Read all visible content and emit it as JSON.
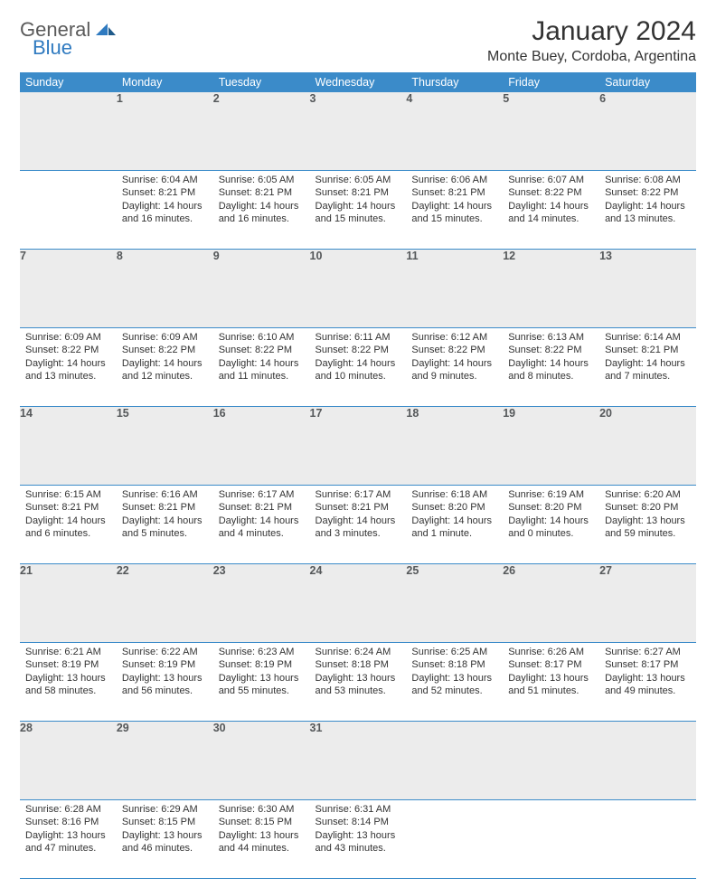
{
  "brand": {
    "name1": "General",
    "name2": "Blue"
  },
  "title": "January 2024",
  "location": "Monte Buey, Cordoba, Argentina",
  "colors": {
    "header_bg": "#3b8bc9",
    "header_text": "#ffffff",
    "daynum_bg": "#ececec",
    "daynum_text": "#55585a",
    "body_text": "#333333",
    "rule": "#3b8bc9",
    "logo_gray": "#5a5a5a",
    "logo_blue": "#2f7ac0"
  },
  "weekdays": [
    "Sunday",
    "Monday",
    "Tuesday",
    "Wednesday",
    "Thursday",
    "Friday",
    "Saturday"
  ],
  "weeks": [
    {
      "nums": [
        "",
        "1",
        "2",
        "3",
        "4",
        "5",
        "6"
      ],
      "cells": [
        null,
        {
          "sr": "Sunrise: 6:04 AM",
          "ss": "Sunset: 8:21 PM",
          "dl": "Daylight: 14 hours and 16 minutes."
        },
        {
          "sr": "Sunrise: 6:05 AM",
          "ss": "Sunset: 8:21 PM",
          "dl": "Daylight: 14 hours and 16 minutes."
        },
        {
          "sr": "Sunrise: 6:05 AM",
          "ss": "Sunset: 8:21 PM",
          "dl": "Daylight: 14 hours and 15 minutes."
        },
        {
          "sr": "Sunrise: 6:06 AM",
          "ss": "Sunset: 8:21 PM",
          "dl": "Daylight: 14 hours and 15 minutes."
        },
        {
          "sr": "Sunrise: 6:07 AM",
          "ss": "Sunset: 8:22 PM",
          "dl": "Daylight: 14 hours and 14 minutes."
        },
        {
          "sr": "Sunrise: 6:08 AM",
          "ss": "Sunset: 8:22 PM",
          "dl": "Daylight: 14 hours and 13 minutes."
        }
      ]
    },
    {
      "nums": [
        "7",
        "8",
        "9",
        "10",
        "11",
        "12",
        "13"
      ],
      "cells": [
        {
          "sr": "Sunrise: 6:09 AM",
          "ss": "Sunset: 8:22 PM",
          "dl": "Daylight: 14 hours and 13 minutes."
        },
        {
          "sr": "Sunrise: 6:09 AM",
          "ss": "Sunset: 8:22 PM",
          "dl": "Daylight: 14 hours and 12 minutes."
        },
        {
          "sr": "Sunrise: 6:10 AM",
          "ss": "Sunset: 8:22 PM",
          "dl": "Daylight: 14 hours and 11 minutes."
        },
        {
          "sr": "Sunrise: 6:11 AM",
          "ss": "Sunset: 8:22 PM",
          "dl": "Daylight: 14 hours and 10 minutes."
        },
        {
          "sr": "Sunrise: 6:12 AM",
          "ss": "Sunset: 8:22 PM",
          "dl": "Daylight: 14 hours and 9 minutes."
        },
        {
          "sr": "Sunrise: 6:13 AM",
          "ss": "Sunset: 8:22 PM",
          "dl": "Daylight: 14 hours and 8 minutes."
        },
        {
          "sr": "Sunrise: 6:14 AM",
          "ss": "Sunset: 8:21 PM",
          "dl": "Daylight: 14 hours and 7 minutes."
        }
      ]
    },
    {
      "nums": [
        "14",
        "15",
        "16",
        "17",
        "18",
        "19",
        "20"
      ],
      "cells": [
        {
          "sr": "Sunrise: 6:15 AM",
          "ss": "Sunset: 8:21 PM",
          "dl": "Daylight: 14 hours and 6 minutes."
        },
        {
          "sr": "Sunrise: 6:16 AM",
          "ss": "Sunset: 8:21 PM",
          "dl": "Daylight: 14 hours and 5 minutes."
        },
        {
          "sr": "Sunrise: 6:17 AM",
          "ss": "Sunset: 8:21 PM",
          "dl": "Daylight: 14 hours and 4 minutes."
        },
        {
          "sr": "Sunrise: 6:17 AM",
          "ss": "Sunset: 8:21 PM",
          "dl": "Daylight: 14 hours and 3 minutes."
        },
        {
          "sr": "Sunrise: 6:18 AM",
          "ss": "Sunset: 8:20 PM",
          "dl": "Daylight: 14 hours and 1 minute."
        },
        {
          "sr": "Sunrise: 6:19 AM",
          "ss": "Sunset: 8:20 PM",
          "dl": "Daylight: 14 hours and 0 minutes."
        },
        {
          "sr": "Sunrise: 6:20 AM",
          "ss": "Sunset: 8:20 PM",
          "dl": "Daylight: 13 hours and 59 minutes."
        }
      ]
    },
    {
      "nums": [
        "21",
        "22",
        "23",
        "24",
        "25",
        "26",
        "27"
      ],
      "cells": [
        {
          "sr": "Sunrise: 6:21 AM",
          "ss": "Sunset: 8:19 PM",
          "dl": "Daylight: 13 hours and 58 minutes."
        },
        {
          "sr": "Sunrise: 6:22 AM",
          "ss": "Sunset: 8:19 PM",
          "dl": "Daylight: 13 hours and 56 minutes."
        },
        {
          "sr": "Sunrise: 6:23 AM",
          "ss": "Sunset: 8:19 PM",
          "dl": "Daylight: 13 hours and 55 minutes."
        },
        {
          "sr": "Sunrise: 6:24 AM",
          "ss": "Sunset: 8:18 PM",
          "dl": "Daylight: 13 hours and 53 minutes."
        },
        {
          "sr": "Sunrise: 6:25 AM",
          "ss": "Sunset: 8:18 PM",
          "dl": "Daylight: 13 hours and 52 minutes."
        },
        {
          "sr": "Sunrise: 6:26 AM",
          "ss": "Sunset: 8:17 PM",
          "dl": "Daylight: 13 hours and 51 minutes."
        },
        {
          "sr": "Sunrise: 6:27 AM",
          "ss": "Sunset: 8:17 PM",
          "dl": "Daylight: 13 hours and 49 minutes."
        }
      ]
    },
    {
      "nums": [
        "28",
        "29",
        "30",
        "31",
        "",
        "",
        ""
      ],
      "cells": [
        {
          "sr": "Sunrise: 6:28 AM",
          "ss": "Sunset: 8:16 PM",
          "dl": "Daylight: 13 hours and 47 minutes."
        },
        {
          "sr": "Sunrise: 6:29 AM",
          "ss": "Sunset: 8:15 PM",
          "dl": "Daylight: 13 hours and 46 minutes."
        },
        {
          "sr": "Sunrise: 6:30 AM",
          "ss": "Sunset: 8:15 PM",
          "dl": "Daylight: 13 hours and 44 minutes."
        },
        {
          "sr": "Sunrise: 6:31 AM",
          "ss": "Sunset: 8:14 PM",
          "dl": "Daylight: 13 hours and 43 minutes."
        },
        null,
        null,
        null
      ]
    }
  ]
}
